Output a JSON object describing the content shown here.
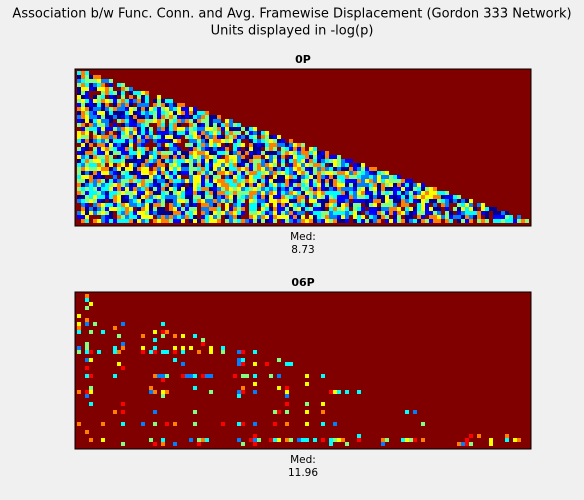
{
  "title": "Association b/w Func. Conn. and Avg. Framewise Displacement (Gordon 333 Network)",
  "subtitle": "Units displayed in -log(p)",
  "chart_data": [
    {
      "type": "heatmap",
      "title": "0P",
      "median_label": "Med:",
      "median": 8.73
    },
    {
      "type": "heatmap",
      "title": "06P",
      "median_label": "Med:",
      "median": 11.96
    }
  ]
}
